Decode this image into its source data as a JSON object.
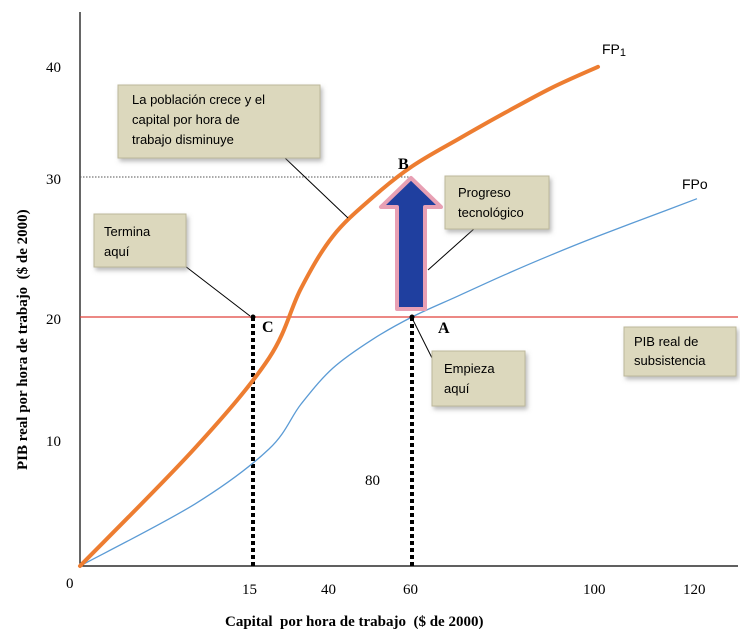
{
  "chart_data": {
    "type": "line",
    "xlabel": "Capital  por hora de trabajo  ($ de 2000)",
    "ylabel": "PIB real por hora de trabajo  ($ de 2000)",
    "x_ticks": [
      "0",
      "15",
      "40",
      "60",
      "100",
      "120"
    ],
    "y_ticks": [
      "10",
      "20",
      "30",
      "40"
    ],
    "ylim": [
      0,
      44
    ],
    "series": [
      {
        "name": "FP1",
        "color": "#ed7d31",
        "x": [
          0,
          10,
          20,
          30,
          40,
          50,
          60,
          70,
          80,
          90,
          100
        ],
        "y": [
          0,
          9.5,
          16.7,
          22.3,
          26.5,
          29.6,
          32.1,
          34.3,
          36.4,
          38.4,
          40.1
        ]
      },
      {
        "name": "FPo",
        "color": "#5b9bd5",
        "x": [
          0,
          10,
          20,
          30,
          40,
          50,
          60,
          70,
          80,
          90,
          100,
          110,
          120
        ],
        "y": [
          0,
          5.0,
          9.4,
          13.0,
          15.9,
          18.2,
          20.0,
          21.7,
          23.4,
          25.0,
          26.5,
          28.0,
          29.5
        ]
      }
    ],
    "reference_lines": [
      {
        "axis": "y",
        "value": 20,
        "color": "#e0403a",
        "label": "PIB real de subsistencia"
      },
      {
        "axis": "y",
        "value": 30,
        "color": "#555555",
        "style": "dotted"
      }
    ],
    "points": [
      {
        "label": "A",
        "x": 60,
        "y": 20
      },
      {
        "label": "B",
        "x": 60,
        "y": 30
      },
      {
        "label": "C",
        "x": 15,
        "y": 20
      }
    ],
    "annotations": [
      "La población crece y el capital por hora de trabajo disminuye",
      "Termina aquí",
      "Progreso tecnológico",
      "Empieza aquí",
      "PIB real de subsistencia"
    ],
    "stray_text": "80",
    "curve_labels": {
      "fp1_main": "FP",
      "fp1_sub": "1",
      "fpo": "FPo"
    }
  },
  "boxes": {
    "poblacion": [
      "La población crece y el",
      "capital por hora de",
      "trabajo disminuye"
    ],
    "termina": [
      "Termina",
      "aquí"
    ],
    "progreso": [
      "Progreso",
      "tecnológico"
    ],
    "empieza": [
      "Empieza",
      "aquí"
    ],
    "subsistencia": [
      "PIB real de",
      "subsistencia"
    ]
  },
  "colors": {
    "fp1": "#ed7d31",
    "fpo": "#5b9bd5",
    "subsistence_line": "#e0403a",
    "arrow_fill": "#1f3f9f",
    "arrow_outline": "#e8a0b4",
    "box_fill": "#dcd8bd"
  }
}
